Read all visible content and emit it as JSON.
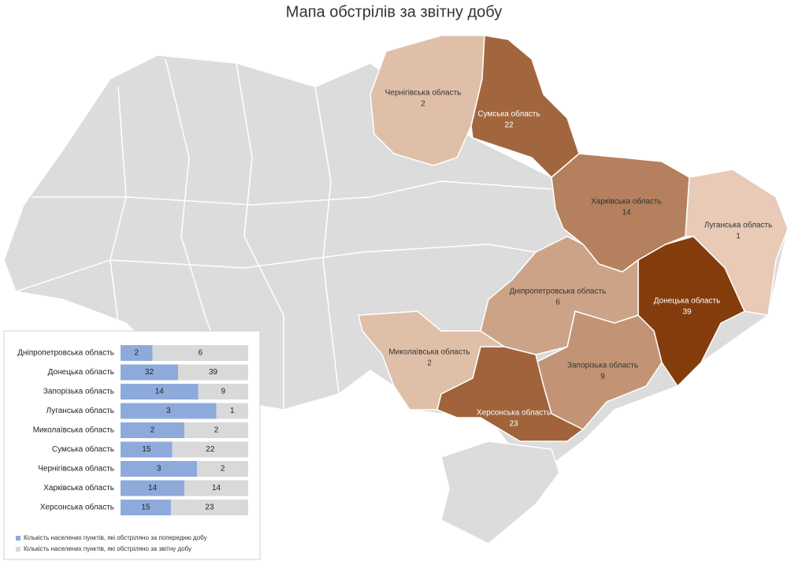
{
  "map": {
    "title": "Мапа обстрілів за звітну добу",
    "regions": [
      {
        "name": "Чернігівська область",
        "value": 2
      },
      {
        "name": "Сумська область",
        "value": 22
      },
      {
        "name": "Харківська область",
        "value": 14
      },
      {
        "name": "Луганська область",
        "value": 1
      },
      {
        "name": "Донецька область",
        "value": 39
      },
      {
        "name": "Дніпропетровська область",
        "value": 6
      },
      {
        "name": "Миколаївська область",
        "value": 2
      },
      {
        "name": "Запорізька область",
        "value": 9
      },
      {
        "name": "Херсонська область",
        "value": 23
      }
    ]
  },
  "chart_data": {
    "type": "bar",
    "orientation": "horizontal",
    "stacking": "percent",
    "categories": [
      "Дніпропетровська область",
      "Донецька область",
      "Запорізька область",
      "Луганська область",
      "Миколаївська область",
      "Сумська область",
      "Чернігівська область",
      "Харківська область",
      "Херсонська область"
    ],
    "series": [
      {
        "name": "Кількість населених пунктів, які обстріляно за попередню добу",
        "color": "#8eaadb",
        "values": [
          2,
          32,
          14,
          3,
          2,
          15,
          3,
          14,
          15
        ]
      },
      {
        "name": "Кількість населених пунктів, які обстріляно за звітну добу",
        "color": "#d9d9d9",
        "values": [
          6,
          39,
          9,
          1,
          2,
          22,
          2,
          14,
          23
        ]
      }
    ]
  }
}
